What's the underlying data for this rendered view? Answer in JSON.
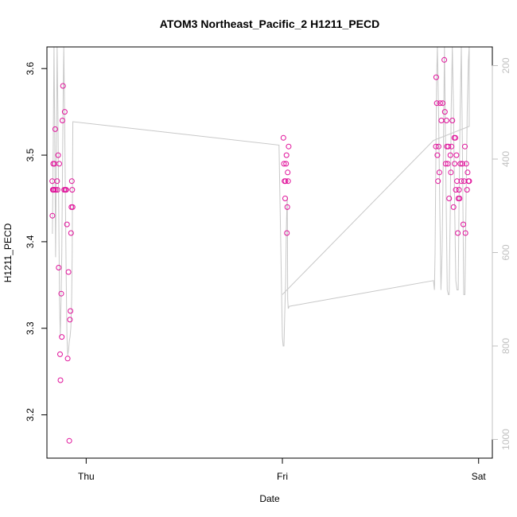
{
  "chart_data": {
    "type": "scatter",
    "title": "ATOM3 Northeast_Pacific_2 H1211_PECD",
    "xlabel": "Date",
    "ylabel": "H1211_PECD",
    "x_unit": "days",
    "x_ticks": [
      {
        "x": 0,
        "label": "Thu"
      },
      {
        "x": 1,
        "label": "Fri"
      },
      {
        "x": 2,
        "label": "Sat"
      }
    ],
    "xlim": [
      -0.2,
      2.07
    ],
    "ylim": [
      3.15,
      3.625
    ],
    "y_ticks": [
      "3.2",
      "3.3",
      "3.4",
      "3.5",
      "3.6"
    ],
    "y2_ticks": [
      "200",
      "400",
      "600",
      "800",
      "1000"
    ],
    "y2lim": [
      1040,
      160
    ],
    "grid": false,
    "colors": {
      "points": "#e0119a",
      "line": "#c8c8c8"
    },
    "points": [
      {
        "x": -0.173,
        "y": 3.47
      },
      {
        "x": -0.172,
        "y": 3.43
      },
      {
        "x": -0.17,
        "y": 3.46
      },
      {
        "x": -0.168,
        "y": 3.49
      },
      {
        "x": -0.166,
        "y": 3.46
      },
      {
        "x": -0.164,
        "y": 3.46
      },
      {
        "x": -0.161,
        "y": 3.49
      },
      {
        "x": -0.158,
        "y": 3.53
      },
      {
        "x": -0.156,
        "y": 3.46
      },
      {
        "x": -0.148,
        "y": 3.47
      },
      {
        "x": -0.146,
        "y": 3.46
      },
      {
        "x": -0.143,
        "y": 3.5
      },
      {
        "x": -0.14,
        "y": 3.37
      },
      {
        "x": -0.137,
        "y": 3.49
      },
      {
        "x": -0.133,
        "y": 3.27
      },
      {
        "x": -0.131,
        "y": 3.24
      },
      {
        "x": -0.127,
        "y": 3.34
      },
      {
        "x": -0.124,
        "y": 3.29
      },
      {
        "x": -0.121,
        "y": 3.54
      },
      {
        "x": -0.118,
        "y": 3.58
      },
      {
        "x": -0.112,
        "y": 3.46
      },
      {
        "x": -0.109,
        "y": 3.55
      },
      {
        "x": -0.106,
        "y": 3.46
      },
      {
        "x": -0.102,
        "y": 3.46
      },
      {
        "x": -0.098,
        "y": 3.42
      },
      {
        "x": -0.094,
        "y": 3.265
      },
      {
        "x": -0.09,
        "y": 3.365
      },
      {
        "x": -0.086,
        "y": 3.17
      },
      {
        "x": -0.083,
        "y": 3.31
      },
      {
        "x": -0.08,
        "y": 3.32
      },
      {
        "x": -0.077,
        "y": 3.41
      },
      {
        "x": -0.075,
        "y": 3.44
      },
      {
        "x": -0.073,
        "y": 3.47
      },
      {
        "x": -0.071,
        "y": 3.46
      },
      {
        "x": -0.069,
        "y": 3.44
      },
      {
        "x": 1.005,
        "y": 3.52
      },
      {
        "x": 1.008,
        "y": 3.49
      },
      {
        "x": 1.011,
        "y": 3.47
      },
      {
        "x": 1.014,
        "y": 3.45
      },
      {
        "x": 1.016,
        "y": 3.47
      },
      {
        "x": 1.019,
        "y": 3.49
      },
      {
        "x": 1.021,
        "y": 3.5
      },
      {
        "x": 1.023,
        "y": 3.41
      },
      {
        "x": 1.025,
        "y": 3.44
      },
      {
        "x": 1.027,
        "y": 3.48
      },
      {
        "x": 1.029,
        "y": 3.47
      },
      {
        "x": 1.032,
        "y": 3.51
      },
      {
        "x": 1.782,
        "y": 3.51
      },
      {
        "x": 1.784,
        "y": 3.59
      },
      {
        "x": 1.787,
        "y": 3.56
      },
      {
        "x": 1.79,
        "y": 3.5
      },
      {
        "x": 1.793,
        "y": 3.47
      },
      {
        "x": 1.796,
        "y": 3.51
      },
      {
        "x": 1.8,
        "y": 3.48
      },
      {
        "x": 1.804,
        "y": 3.56
      },
      {
        "x": 1.81,
        "y": 3.54
      },
      {
        "x": 1.817,
        "y": 3.56
      },
      {
        "x": 1.825,
        "y": 3.61
      },
      {
        "x": 1.828,
        "y": 3.55
      },
      {
        "x": 1.832,
        "y": 3.49
      },
      {
        "x": 1.836,
        "y": 3.54
      },
      {
        "x": 1.838,
        "y": 3.51
      },
      {
        "x": 1.843,
        "y": 3.49
      },
      {
        "x": 1.846,
        "y": 3.51
      },
      {
        "x": 1.85,
        "y": 3.45
      },
      {
        "x": 1.856,
        "y": 3.5
      },
      {
        "x": 1.859,
        "y": 3.48
      },
      {
        "x": 1.862,
        "y": 3.51
      },
      {
        "x": 1.866,
        "y": 3.54
      },
      {
        "x": 1.872,
        "y": 3.44
      },
      {
        "x": 1.876,
        "y": 3.52
      },
      {
        "x": 1.878,
        "y": 3.49
      },
      {
        "x": 1.882,
        "y": 3.52
      },
      {
        "x": 1.884,
        "y": 3.46
      },
      {
        "x": 1.887,
        "y": 3.5
      },
      {
        "x": 1.89,
        "y": 3.47
      },
      {
        "x": 1.894,
        "y": 3.41
      },
      {
        "x": 1.897,
        "y": 3.45
      },
      {
        "x": 1.9,
        "y": 3.46
      },
      {
        "x": 1.903,
        "y": 3.45
      },
      {
        "x": 1.907,
        "y": 3.49
      },
      {
        "x": 1.912,
        "y": 3.47
      },
      {
        "x": 1.917,
        "y": 3.49
      },
      {
        "x": 1.922,
        "y": 3.42
      },
      {
        "x": 1.926,
        "y": 3.47
      },
      {
        "x": 1.93,
        "y": 3.51
      },
      {
        "x": 1.933,
        "y": 3.41
      },
      {
        "x": 1.937,
        "y": 3.49
      },
      {
        "x": 1.941,
        "y": 3.46
      },
      {
        "x": 1.944,
        "y": 3.48
      },
      {
        "x": 1.948,
        "y": 3.47
      },
      {
        "x": 1.952,
        "y": 3.47
      }
    ],
    "profile_y2": [
      {
        "x": -0.172,
        "y2": 560
      },
      {
        "x": -0.168,
        "y2": 380
      },
      {
        "x": -0.164,
        "y2": 160
      },
      {
        "x": -0.16,
        "y2": 360
      },
      {
        "x": -0.156,
        "y2": 610
      },
      {
        "x": -0.152,
        "y2": 400
      },
      {
        "x": -0.148,
        "y2": 160
      },
      {
        "x": -0.144,
        "y2": 300
      },
      {
        "x": -0.14,
        "y2": 500
      },
      {
        "x": -0.136,
        "y2": 700
      },
      {
        "x": -0.132,
        "y2": 780
      },
      {
        "x": -0.128,
        "y2": 700
      },
      {
        "x": -0.124,
        "y2": 600
      },
      {
        "x": -0.12,
        "y2": 400
      },
      {
        "x": -0.117,
        "y2": 250
      },
      {
        "x": -0.114,
        "y2": 160
      },
      {
        "x": -0.11,
        "y2": 300
      },
      {
        "x": -0.106,
        "y2": 480
      },
      {
        "x": -0.102,
        "y2": 650
      },
      {
        "x": -0.098,
        "y2": 780
      },
      {
        "x": -0.094,
        "y2": 820
      },
      {
        "x": -0.09,
        "y2": 810
      },
      {
        "x": -0.086,
        "y2": 790
      },
      {
        "x": -0.082,
        "y2": 780
      },
      {
        "x": -0.078,
        "y2": 760
      },
      {
        "x": -0.074,
        "y2": 700
      },
      {
        "x": -0.071,
        "y2": 600
      },
      {
        "x": -0.069,
        "y2": 400
      },
      {
        "x": -0.068,
        "y2": 320
      },
      {
        "x": 0.983,
        "y2": 370
      },
      {
        "x": 1.0,
        "y2": 780
      },
      {
        "x": 1.004,
        "y2": 800
      },
      {
        "x": 1.008,
        "y2": 800
      },
      {
        "x": 1.012,
        "y2": 730
      },
      {
        "x": 1.017,
        "y2": 660
      },
      {
        "x": 1.02,
        "y2": 550
      },
      {
        "x": 1.023,
        "y2": 500
      },
      {
        "x": 1.025,
        "y2": 480
      },
      {
        "x": 1.027,
        "y2": 700
      },
      {
        "x": 1.03,
        "y2": 720
      },
      {
        "x": 1.035,
        "y2": 715
      },
      {
        "x": 1.77,
        "y2": 660
      },
      {
        "x": 1.775,
        "y2": 680
      },
      {
        "x": 1.778,
        "y2": 600
      },
      {
        "x": 1.782,
        "y2": 400
      },
      {
        "x": 1.786,
        "y2": 230
      },
      {
        "x": 1.79,
        "y2": 160
      },
      {
        "x": 1.796,
        "y2": 300
      },
      {
        "x": 1.802,
        "y2": 500
      },
      {
        "x": 1.808,
        "y2": 680
      },
      {
        "x": 1.814,
        "y2": 600
      },
      {
        "x": 1.82,
        "y2": 400
      },
      {
        "x": 1.826,
        "y2": 160
      },
      {
        "x": 1.832,
        "y2": 400
      },
      {
        "x": 1.84,
        "y2": 680
      },
      {
        "x": 1.846,
        "y2": 690
      },
      {
        "x": 1.85,
        "y2": 690
      },
      {
        "x": 1.856,
        "y2": 500
      },
      {
        "x": 1.86,
        "y2": 300
      },
      {
        "x": 1.866,
        "y2": 160
      },
      {
        "x": 1.872,
        "y2": 300
      },
      {
        "x": 1.878,
        "y2": 500
      },
      {
        "x": 1.884,
        "y2": 660
      },
      {
        "x": 1.89,
        "y2": 680
      },
      {
        "x": 1.896,
        "y2": 680
      },
      {
        "x": 1.9,
        "y2": 500
      },
      {
        "x": 1.906,
        "y2": 300
      },
      {
        "x": 1.912,
        "y2": 160
      },
      {
        "x": 1.918,
        "y2": 400
      },
      {
        "x": 1.924,
        "y2": 690
      },
      {
        "x": 1.93,
        "y2": 690
      },
      {
        "x": 1.936,
        "y2": 500
      },
      {
        "x": 1.942,
        "y2": 300
      },
      {
        "x": 1.948,
        "y2": 190
      },
      {
        "x": 1.952,
        "y2": 160
      },
      {
        "x": 1.952,
        "y2": 330
      },
      {
        "x": 1.77,
        "y2": 360
      },
      {
        "x": 1.0,
        "y2": 690
      }
    ]
  }
}
